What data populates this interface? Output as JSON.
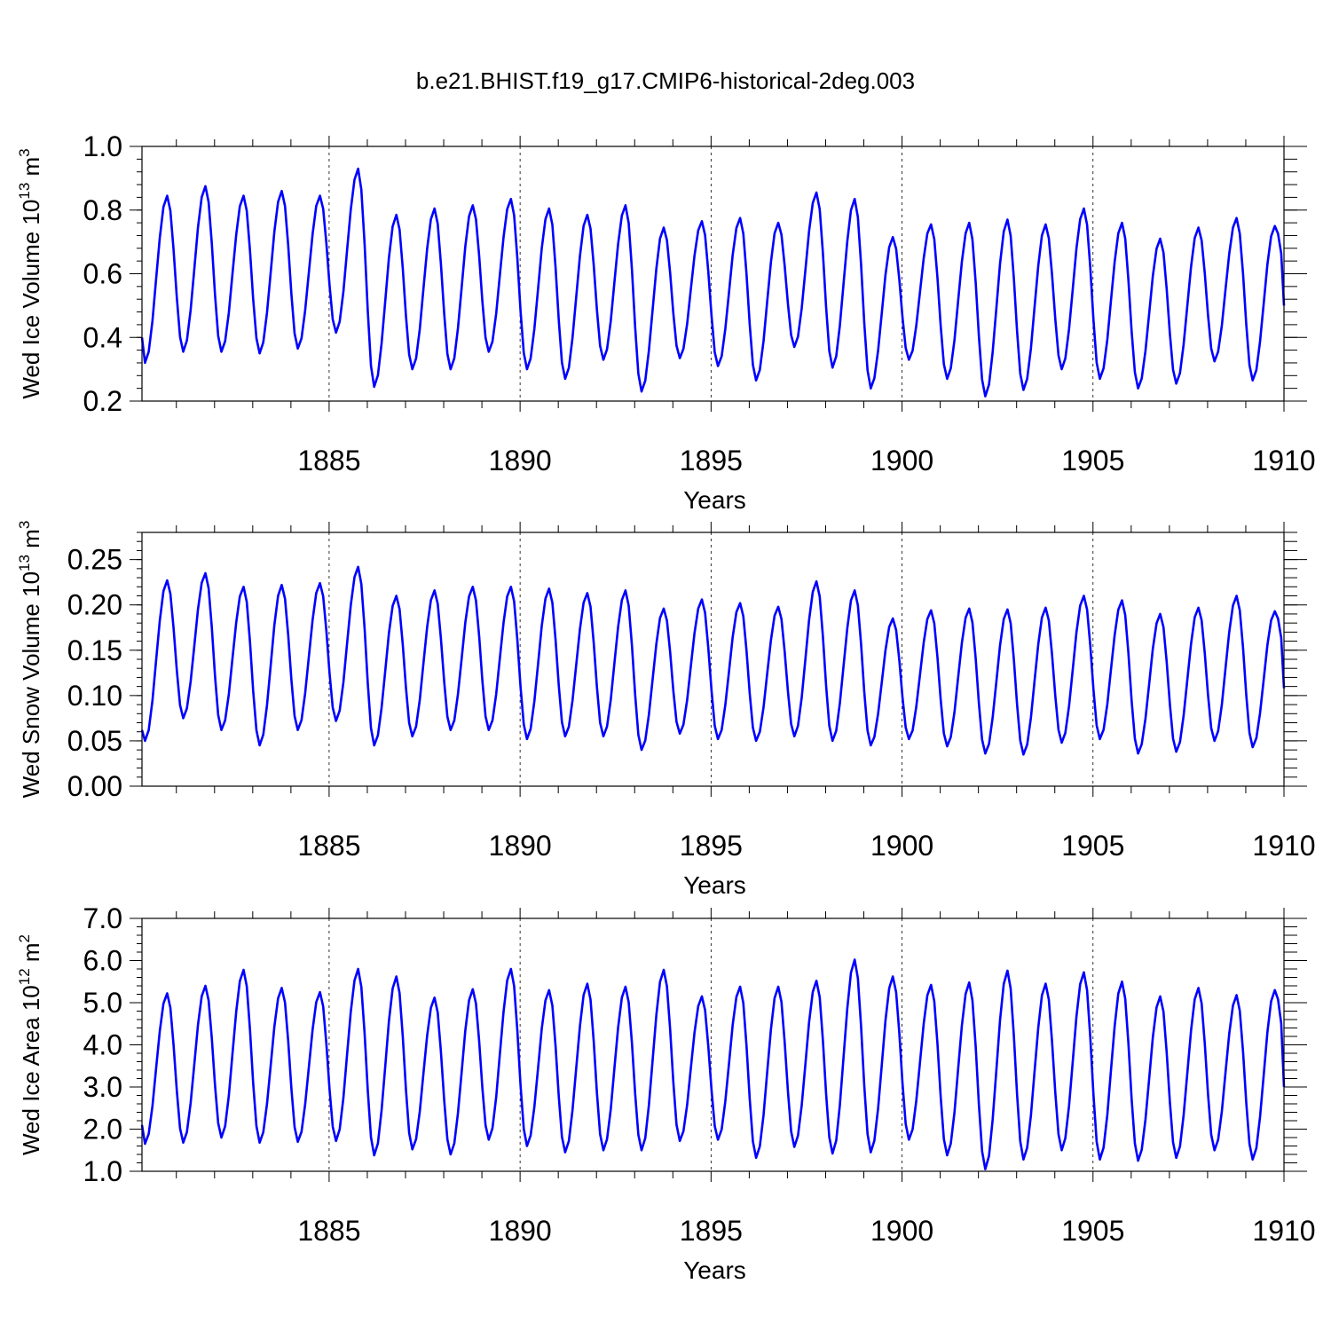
{
  "title": "b.e21.BHIST.f19_g17.CMIP6-historical-2deg.003",
  "colors": {
    "series": "#0000ff",
    "axis": "#000000",
    "gridline": "#000000"
  },
  "chart_data": [
    {
      "type": "line",
      "name": "ice-volume",
      "ylabel_main": "Wed Ice Volume 10",
      "ylabel_exp": "13",
      "ylabel_unit": " m",
      "ylabel_unit_exp": "3",
      "xlabel": "Years",
      "xlim": [
        1880.1,
        1910.0
      ],
      "ylim": [
        0.2,
        1.0
      ],
      "xticks": [
        "1885",
        "1890",
        "1895",
        "1900",
        "1905",
        "1910"
      ],
      "yticks": [
        "0.2",
        "0.4",
        "0.6",
        "0.8",
        "1.0"
      ],
      "yticks_values": [
        0.2,
        0.4,
        0.6,
        0.8,
        1.0
      ],
      "series": [
        {
          "name": "Wed Ice Volume",
          "min": [
            0.32,
            0.355,
            0.355,
            0.35,
            0.365,
            0.415,
            0.245,
            0.3,
            0.3,
            0.355,
            0.3,
            0.27,
            0.33,
            0.23,
            0.335,
            0.31,
            0.265,
            0.37,
            0.305,
            0.24,
            0.33,
            0.27,
            0.215,
            0.235,
            0.3,
            0.27,
            0.24,
            0.255,
            0.325,
            0.265
          ],
          "max": [
            0.845,
            0.875,
            0.845,
            0.86,
            0.845,
            0.93,
            0.785,
            0.805,
            0.815,
            0.835,
            0.805,
            0.785,
            0.815,
            0.745,
            0.765,
            0.775,
            0.76,
            0.855,
            0.835,
            0.715,
            0.755,
            0.76,
            0.77,
            0.755,
            0.805,
            0.76,
            0.71,
            0.745,
            0.775,
            0.75
          ],
          "start": 0.4,
          "end": 0.5
        }
      ]
    },
    {
      "type": "line",
      "name": "snow-volume",
      "ylabel_main": "Wed Snow Volume 10",
      "ylabel_exp": "13",
      "ylabel_unit": " m",
      "ylabel_unit_exp": "3",
      "xlabel": "Years",
      "xlim": [
        1880.1,
        1910.0
      ],
      "ylim": [
        0.0,
        0.28
      ],
      "xticks": [
        "1885",
        "1890",
        "1895",
        "1900",
        "1905",
        "1910"
      ],
      "yticks": [
        "0.00",
        "0.05",
        "0.10",
        "0.15",
        "0.20",
        "0.25"
      ],
      "yticks_values": [
        0.0,
        0.05,
        0.1,
        0.15,
        0.2,
        0.25
      ],
      "series": [
        {
          "name": "Wed Snow Volume",
          "min": [
            0.05,
            0.075,
            0.062,
            0.045,
            0.062,
            0.072,
            0.045,
            0.055,
            0.062,
            0.062,
            0.052,
            0.055,
            0.055,
            0.04,
            0.058,
            0.052,
            0.05,
            0.055,
            0.05,
            0.045,
            0.052,
            0.044,
            0.036,
            0.035,
            0.048,
            0.052,
            0.036,
            0.038,
            0.05,
            0.043
          ],
          "max": [
            0.227,
            0.235,
            0.22,
            0.222,
            0.224,
            0.242,
            0.21,
            0.216,
            0.22,
            0.22,
            0.218,
            0.213,
            0.216,
            0.196,
            0.206,
            0.202,
            0.198,
            0.226,
            0.216,
            0.185,
            0.194,
            0.196,
            0.195,
            0.197,
            0.21,
            0.205,
            0.19,
            0.197,
            0.21,
            0.193
          ],
          "start": 0.062,
          "end": 0.108
        }
      ]
    },
    {
      "type": "line",
      "name": "ice-area",
      "ylabel_main": "Wed Ice Area 10",
      "ylabel_exp": "12",
      "ylabel_unit": " m",
      "ylabel_unit_exp": "2",
      "xlabel": "Years",
      "xlim": [
        1880.1,
        1910.0
      ],
      "ylim": [
        1.0,
        7.0
      ],
      "xticks": [
        "1885",
        "1890",
        "1895",
        "1900",
        "1905",
        "1910"
      ],
      "yticks": [
        "1.0",
        "2.0",
        "3.0",
        "4.0",
        "5.0",
        "6.0",
        "7.0"
      ],
      "yticks_values": [
        1.0,
        2.0,
        3.0,
        4.0,
        5.0,
        6.0,
        7.0
      ],
      "series": [
        {
          "name": "Wed Ice Area",
          "min": [
            1.65,
            1.68,
            1.8,
            1.68,
            1.7,
            1.72,
            1.38,
            1.52,
            1.4,
            1.75,
            1.6,
            1.45,
            1.5,
            1.5,
            1.72,
            1.75,
            1.32,
            1.58,
            1.42,
            1.45,
            1.75,
            1.38,
            1.05,
            1.28,
            1.5,
            1.28,
            1.25,
            1.32,
            1.5,
            1.28
          ],
          "max": [
            5.22,
            5.4,
            5.78,
            5.35,
            5.25,
            5.8,
            5.62,
            5.12,
            5.32,
            5.8,
            5.3,
            5.45,
            5.38,
            5.78,
            5.15,
            5.38,
            5.38,
            5.52,
            6.02,
            5.62,
            5.42,
            5.48,
            5.76,
            5.45,
            5.72,
            5.5,
            5.15,
            5.35,
            5.18,
            5.3
          ],
          "start": 2.1,
          "end": 3.0
        }
      ]
    }
  ]
}
